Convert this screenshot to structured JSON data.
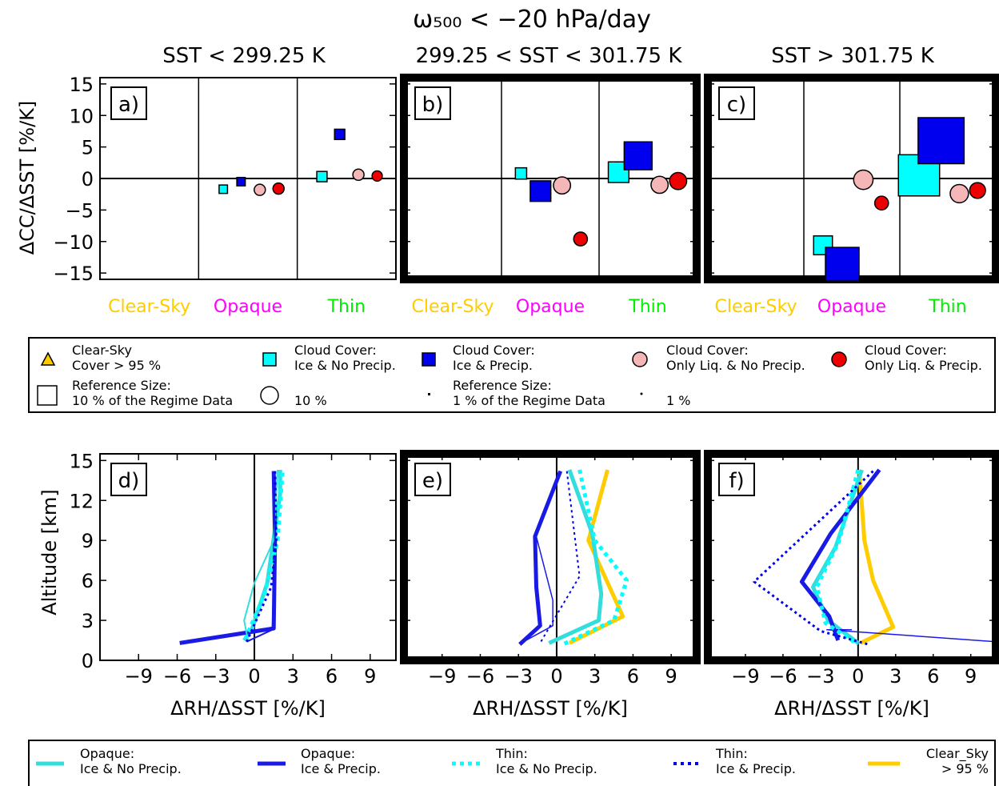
{
  "figure": {
    "suptitle": "ω₅₀₀ < −20 hPa/day",
    "columns": [
      "SST < 299.25 K",
      "299.25 < SST < 301.75 K",
      "SST > 301.75 K"
    ]
  },
  "colors": {
    "clear_sky": "#ffcc00",
    "opaque": "#ff00ff",
    "thin": "#00ee00",
    "ice_no_precip": "#00ffff",
    "ice_precip": "#0000ee",
    "liq_no_precip": "#f4b6b6",
    "liq_precip": "#ee0000",
    "opaque_ice_no_precip_line": "#33dddd",
    "opaque_ice_precip_line": "#1a1ae6",
    "clear_sky_line": "#ffcc00"
  },
  "top_legend": {
    "clear_sky": "Clear-Sky\nCover > 95 %",
    "ice_no_precip": "Cloud Cover:\nIce & No Precip.",
    "ice_precip": "Cloud Cover:\nIce & Precip.",
    "liq_no_precip": "Cloud Cover:\nOnly Liq. & No Precip.",
    "liq_precip": "Cloud Cover:\nOnly Liq. & Precip.",
    "ref_square": "Reference Size:\n10 % of the Regime Data",
    "ref_circle": "10 %",
    "ref_square_small": "Reference Size:\n1 % of the Regime Data",
    "ref_circle_small": "1 %"
  },
  "bottom_legend": {
    "opaque_ice_no_precip": "Opaque:\nIce & No Precip.",
    "opaque_ice_precip": "Opaque:\nIce & Precip.",
    "thin_ice_no_precip": "Thin:\nIce & No Precip.",
    "thin_ice_precip": "Thin:\nIce & Precip.",
    "clear_sky": "Clear_Sky\n> 95 %"
  },
  "chart_data": [
    {
      "type": "scatter",
      "panel": "a)",
      "ylabel": "ΔCC/ΔSST [%/K]",
      "ylim": [
        -16,
        16
      ],
      "yticks": [
        -15,
        -10,
        -5,
        0,
        5,
        10,
        15
      ],
      "categories": [
        "Clear-Sky",
        "Opaque",
        "Thin"
      ],
      "points": [
        {
          "cat": 1,
          "pos": 0.25,
          "kind": "ice_no_precip",
          "value": -1.7,
          "size_pct": 1
        },
        {
          "cat": 1,
          "pos": 0.43,
          "kind": "ice_precip",
          "value": -0.5,
          "size_pct": 1
        },
        {
          "cat": 1,
          "pos": 0.62,
          "kind": "liq_no_precip",
          "value": -1.8,
          "size_pct": 3
        },
        {
          "cat": 1,
          "pos": 0.81,
          "kind": "liq_precip",
          "value": -1.6,
          "size_pct": 3
        },
        {
          "cat": 2,
          "pos": 0.25,
          "kind": "ice_no_precip",
          "value": 0.3,
          "size_pct": 1.5
        },
        {
          "cat": 2,
          "pos": 0.43,
          "kind": "ice_precip",
          "value": 7.0,
          "size_pct": 1.5
        },
        {
          "cat": 2,
          "pos": 0.62,
          "kind": "liq_no_precip",
          "value": 0.6,
          "size_pct": 3
        },
        {
          "cat": 2,
          "pos": 0.81,
          "kind": "liq_precip",
          "value": 0.4,
          "size_pct": 2.5
        }
      ]
    },
    {
      "type": "scatter",
      "panel": "b)",
      "ylim": [
        -16,
        16
      ],
      "categories": [
        "Clear-Sky",
        "Opaque",
        "Thin"
      ],
      "points": [
        {
          "cat": 1,
          "pos": 0.2,
          "kind": "ice_no_precip",
          "value": 0.8,
          "size_pct": 1.8
        },
        {
          "cat": 1,
          "pos": 0.4,
          "kind": "ice_precip",
          "value": -2.0,
          "size_pct": 6
        },
        {
          "cat": 1,
          "pos": 0.62,
          "kind": "liq_no_precip",
          "value": -1.1,
          "size_pct": 7
        },
        {
          "cat": 1,
          "pos": 0.81,
          "kind": "liq_precip",
          "value": -9.6,
          "size_pct": 4.5
        },
        {
          "cat": 2,
          "pos": 0.2,
          "kind": "ice_no_precip",
          "value": 1.0,
          "size_pct": 6
        },
        {
          "cat": 2,
          "pos": 0.4,
          "kind": "ice_precip",
          "value": 3.6,
          "size_pct": 11
        },
        {
          "cat": 2,
          "pos": 0.62,
          "kind": "liq_no_precip",
          "value": -1.0,
          "size_pct": 7
        },
        {
          "cat": 2,
          "pos": 0.81,
          "kind": "liq_precip",
          "value": -0.4,
          "size_pct": 7
        }
      ]
    },
    {
      "type": "scatter",
      "panel": "c)",
      "ylim": [
        -16,
        16
      ],
      "categories": [
        "Clear-Sky",
        "Opaque",
        "Thin"
      ],
      "points": [
        {
          "cat": 1,
          "pos": 0.2,
          "kind": "ice_no_precip",
          "value": -10.6,
          "size_pct": 5
        },
        {
          "cat": 1,
          "pos": 0.4,
          "kind": "ice_precip",
          "value": -13.6,
          "size_pct": 16
        },
        {
          "cat": 1,
          "pos": 0.62,
          "kind": "liq_no_precip",
          "value": -0.2,
          "size_pct": 9
        },
        {
          "cat": 1,
          "pos": 0.81,
          "kind": "liq_precip",
          "value": -3.9,
          "size_pct": 4.5
        },
        {
          "cat": 2,
          "pos": 0.2,
          "kind": "ice_no_precip",
          "value": 0.5,
          "size_pct": 24
        },
        {
          "cat": 2,
          "pos": 0.43,
          "kind": "ice_precip",
          "value": 6.0,
          "size_pct": 30
        },
        {
          "cat": 2,
          "pos": 0.62,
          "kind": "liq_no_precip",
          "value": -2.4,
          "size_pct": 8
        },
        {
          "cat": 2,
          "pos": 0.81,
          "kind": "liq_precip",
          "value": -1.9,
          "size_pct": 6
        }
      ]
    },
    {
      "type": "line",
      "panel": "d)",
      "xlabel": "ΔRH/ΔSST [%/K]",
      "ylabel": "Altitude [km]",
      "xlim": [
        -12,
        11
      ],
      "ylim": [
        0,
        15.5
      ],
      "xticks": [
        -9,
        -6,
        -3,
        0,
        3,
        6,
        9
      ],
      "yticks": [
        0,
        3,
        6,
        9,
        12,
        15
      ],
      "series": [
        {
          "kind": "opaque_ice_no_precip",
          "width": 5,
          "dash": false,
          "x": [
            -0.8,
            -0.2,
            1.0,
            2.0,
            2.0
          ],
          "y": [
            1.5,
            2.3,
            5.8,
            12.5,
            14.3
          ]
        },
        {
          "kind": "opaque_ice_precip",
          "width": 5,
          "dash": false,
          "x": [
            -5.8,
            1.5,
            1.6,
            1.5
          ],
          "y": [
            1.3,
            2.4,
            9.0,
            14.2
          ]
        },
        {
          "kind": "opaque_ice_no_precip",
          "width": 2,
          "dash": false,
          "x": [
            -0.5,
            -0.8,
            0.0,
            1.5,
            1.8
          ],
          "y": [
            1.5,
            3.0,
            5.8,
            9.0,
            14.3
          ]
        },
        {
          "kind": "opaque_ice_precip",
          "width": 2,
          "dash": false,
          "x": [
            -0.6,
            1.4,
            1.6,
            1.5
          ],
          "y": [
            1.4,
            2.3,
            9.0,
            14.2
          ]
        },
        {
          "kind": "thin_ice_no_precip",
          "width": 5,
          "dash": true,
          "x": [
            -0.7,
            0.8,
            1.8,
            2.2
          ],
          "y": [
            1.6,
            5.0,
            9.0,
            14.3
          ]
        },
        {
          "kind": "thin_ice_precip",
          "width": 3,
          "dash": true,
          "x": [
            -0.6,
            1.3,
            1.7,
            1.6
          ],
          "y": [
            1.4,
            5.5,
            9.0,
            14.2
          ]
        }
      ]
    },
    {
      "type": "line",
      "panel": "e)",
      "xlabel": "ΔRH/ΔSST [%/K]",
      "xlim": [
        -12,
        11
      ],
      "ylim": [
        0,
        15.5
      ],
      "xticks": [
        -9,
        -6,
        -3,
        0,
        3,
        6,
        9
      ],
      "series": [
        {
          "kind": "clear_sky",
          "width": 5,
          "dash": false,
          "x": [
            4.0,
            2.5,
            5.2,
            1.0
          ],
          "y": [
            14.3,
            9.0,
            3.3,
            1.3
          ]
        },
        {
          "kind": "opaque_ice_no_precip",
          "width": 5,
          "dash": false,
          "x": [
            1.0,
            2.8,
            3.5,
            3.3,
            -0.6
          ],
          "y": [
            14.3,
            9.5,
            5.0,
            3.0,
            1.3
          ]
        },
        {
          "kind": "opaque_ice_precip",
          "width": 5,
          "dash": false,
          "x": [
            0.3,
            -1.7,
            -1.6,
            -1.3,
            -2.9
          ],
          "y": [
            14.2,
            9.3,
            5.5,
            2.6,
            1.2
          ]
        },
        {
          "kind": "opaque_ice_precip",
          "width": 1.5,
          "dash": false,
          "x": [
            0.3,
            -1.6,
            -0.3,
            -0.3,
            -2.6
          ],
          "y": [
            14.2,
            9.3,
            4.5,
            2.6,
            1.4
          ]
        },
        {
          "kind": "thin_ice_no_precip",
          "width": 5,
          "dash": true,
          "x": [
            1.8,
            3.0,
            5.5,
            4.5,
            0.5
          ],
          "y": [
            14.3,
            9.0,
            6.0,
            3.0,
            1.2
          ]
        },
        {
          "kind": "thin_ice_precip",
          "width": 2,
          "dash": true,
          "x": [
            0.8,
            1.8,
            -0.5,
            -1.3
          ],
          "y": [
            14.2,
            6.3,
            2.6,
            1.3
          ]
        }
      ]
    },
    {
      "type": "line",
      "panel": "f)",
      "xlabel": "ΔRH/ΔSST [%/K]",
      "xlim": [
        -12,
        11
      ],
      "ylim": [
        0,
        15.5
      ],
      "xticks": [
        -9,
        -6,
        -3,
        0,
        3,
        6,
        9
      ],
      "series": [
        {
          "kind": "clear_sky",
          "width": 5,
          "dash": false,
          "x": [
            0.1,
            0.5,
            1.2,
            2.8,
            0.2
          ],
          "y": [
            14.3,
            9.0,
            6.0,
            2.5,
            1.3
          ]
        },
        {
          "kind": "opaque_ice_no_precip",
          "width": 5,
          "dash": false,
          "x": [
            0.3,
            -1.8,
            -3.6,
            -2.4,
            0.0
          ],
          "y": [
            14.3,
            8.5,
            5.5,
            3.0,
            1.3
          ]
        },
        {
          "kind": "opaque_ice_precip",
          "width": 5,
          "dash": false,
          "x": [
            1.7,
            -2.2,
            -4.5,
            -2.3,
            -1.6
          ],
          "y": [
            14.3,
            9.5,
            5.9,
            3.3,
            1.5
          ]
        },
        {
          "kind": "opaque_ice_precip",
          "width": 1.5,
          "dash": false,
          "x": [
            -0.5,
            -2.5,
            11.0
          ],
          "y": [
            2.3,
            2.3,
            1.4
          ]
        },
        {
          "kind": "thin_ice_no_precip",
          "width": 5,
          "dash": true,
          "x": [
            0.0,
            -1.5,
            -3.3,
            -2.6,
            0.0
          ],
          "y": [
            14.3,
            9.0,
            5.5,
            2.8,
            1.2
          ]
        },
        {
          "kind": "thin_ice_precip",
          "width": 3,
          "dash": true,
          "x": [
            1.2,
            -8.3,
            -3.0,
            0.8
          ],
          "y": [
            14.2,
            5.9,
            2.2,
            1.2
          ]
        }
      ]
    }
  ]
}
